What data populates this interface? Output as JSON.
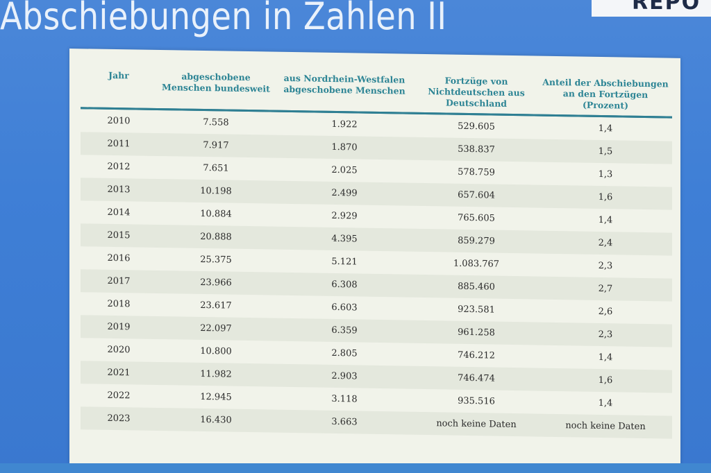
{
  "slide": {
    "title": "Abschiebungen in Zahlen II",
    "logo_text": "REPO"
  },
  "table": {
    "columns": [
      "Jahr",
      "abgeschobene Menschen bundesweit",
      "aus Nordrhein-Westfalen abgeschobene Menschen",
      "Fortzüge von Nichtdeutschen aus Deutschland",
      "Anteil der Abschiebungen an den Fortzügen (Prozent)"
    ],
    "rows": [
      [
        "2010",
        "7.558",
        "1.922",
        "529.605",
        "1,4"
      ],
      [
        "2011",
        "7.917",
        "1.870",
        "538.837",
        "1,5"
      ],
      [
        "2012",
        "7.651",
        "2.025",
        "578.759",
        "1,3"
      ],
      [
        "2013",
        "10.198",
        "2.499",
        "657.604",
        "1,6"
      ],
      [
        "2014",
        "10.884",
        "2.929",
        "765.605",
        "1,4"
      ],
      [
        "2015",
        "20.888",
        "4.395",
        "859.279",
        "2,4"
      ],
      [
        "2016",
        "25.375",
        "5.121",
        "1.083.767",
        "2,3"
      ],
      [
        "2017",
        "23.966",
        "6.308",
        "885.460",
        "2,7"
      ],
      [
        "2018",
        "23.617",
        "6.603",
        "923.581",
        "2,6"
      ],
      [
        "2019",
        "22.097",
        "6.359",
        "961.258",
        "2,3"
      ],
      [
        "2020",
        "10.800",
        "2.805",
        "746.212",
        "1,4"
      ],
      [
        "2021",
        "11.982",
        "2.903",
        "746.474",
        "1,6"
      ],
      [
        "2022",
        "12.945",
        "3.118",
        "935.516",
        "1,4"
      ],
      [
        "2023",
        "16.430",
        "3.663",
        "noch keine Daten",
        "noch keine Daten"
      ]
    ]
  }
}
